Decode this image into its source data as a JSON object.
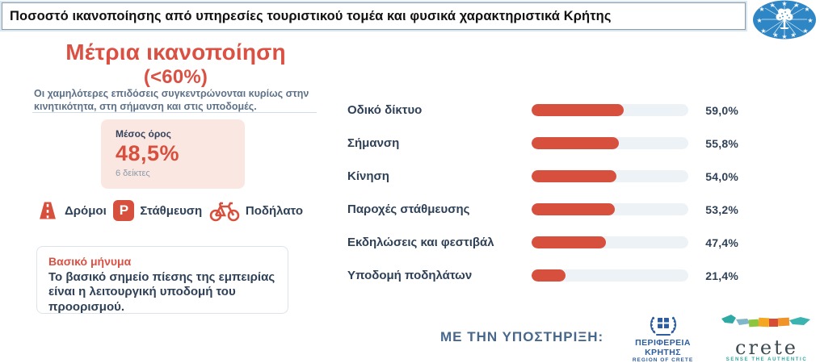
{
  "header": {
    "title": "Ποσοστό ικανοποίησης από υπηρεσίες τουριστικού τομέα και φυσικά χαρακτηριστικά Κρήτης"
  },
  "left": {
    "headline": "Μέτρια ικανοποίηση",
    "headline_sub": "(<60%)",
    "description": "Οι χαμηλότερες επιδόσεις συγκεντρώνονται κυρίως στην κινητικότητα, στη σήμανση και στις υποδομές.",
    "average_card": {
      "label": "Μέσος όρος",
      "value": "48,5%",
      "note": "6 δείκτες"
    },
    "icons": [
      {
        "icon": "road-icon",
        "label": "Δρόμοι"
      },
      {
        "icon": "parking-icon",
        "label": "Στάθμευση",
        "badge_letter": "P"
      },
      {
        "icon": "bicycle-icon",
        "label": "Ποδήλατο"
      }
    ],
    "key_message": {
      "title": "Βασικό μήνυμα",
      "body": "Το βασικό σημείο πίεσης της εμπειρίας είναι η λειτουργική υποδομή του προορισμού."
    }
  },
  "chart_data": {
    "type": "bar",
    "orientation": "horizontal",
    "categories": [
      "Οδικό δίκτυο",
      "Σήμανση",
      "Κίνηση",
      "Παροχές στάθμευσης",
      "Εκδηλώσεις και φεστιβάλ",
      "Υποδομή ποδηλάτων"
    ],
    "values": [
      59.0,
      55.8,
      54.0,
      53.2,
      47.4,
      21.4
    ],
    "value_labels": [
      "59,0%",
      "55,8%",
      "54,0%",
      "53,2%",
      "47,4%",
      "21,4%"
    ],
    "xlim": [
      0,
      100
    ],
    "grid": false,
    "legend": false,
    "bar_color": "#d7503e",
    "track_color": "#edf2f7"
  },
  "footer": {
    "support_label": "ΜΕ ΤΗΝ ΥΠΟΣΤΗΡΙΞΗ:",
    "region_logo": {
      "line1": "ΠΕΡΙΦΕΡΕΙΑ ΚΡΗΤΗΣ",
      "line2": "REGION OF CRETE"
    },
    "crete_logo": {
      "name": "crete",
      "tagline": "SENSE THE AUTHENTIC"
    }
  },
  "colors": {
    "accent_red": "#d7503e",
    "navy_text": "#2f4157",
    "muted_blue": "#5d7289",
    "pink_card_bg": "#fbe7e2",
    "bar_track": "#edf2f7",
    "region_blue": "#2d5d9f",
    "teal": "#2fa9a4"
  }
}
